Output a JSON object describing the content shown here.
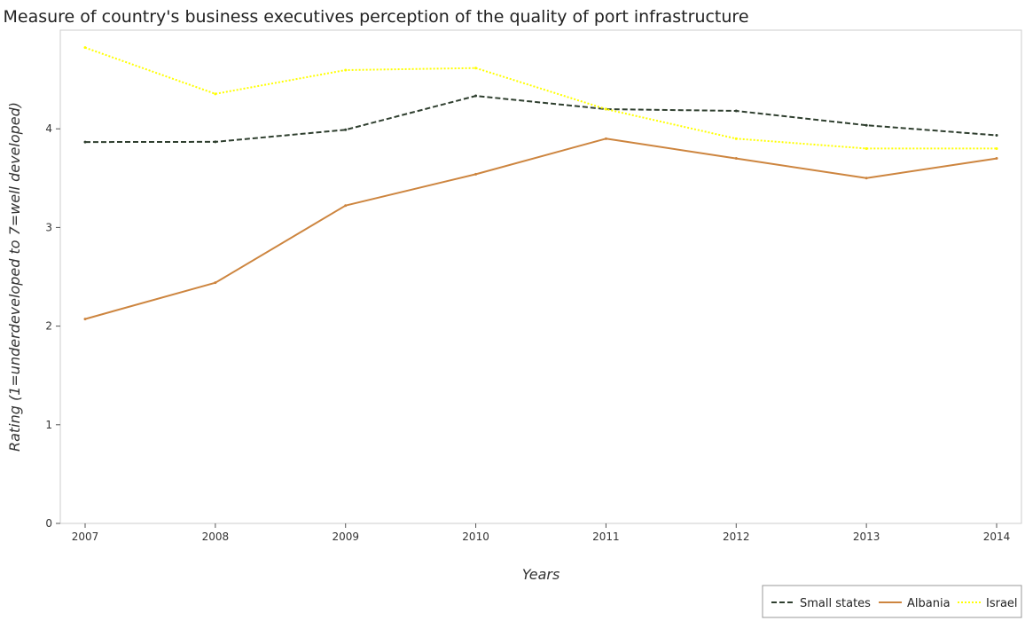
{
  "chart_data": {
    "type": "line",
    "title": "Measure of country's business executives perception of the quality of port infrastructure",
    "xlabel": "Years",
    "ylabel": "Rating (1=underdeveloped to 7=well developed)",
    "categories": [
      "2007",
      "2008",
      "2009",
      "2010",
      "2011",
      "2012",
      "2013",
      "2014"
    ],
    "ylim": [
      0,
      5
    ],
    "yticks": [
      "0",
      "1",
      "2",
      "3",
      "4"
    ],
    "grid": false,
    "legend_position": "bottom-right",
    "series": [
      {
        "name": "Small states",
        "color": "#2f3f2f",
        "dash": "dashed",
        "values": [
          3.866,
          3.868,
          3.99,
          4.334,
          4.2,
          4.182,
          4.036,
          3.934
        ]
      },
      {
        "name": "Albania",
        "color": "#cd853f",
        "dash": "solid",
        "values": [
          2.072,
          2.44,
          3.222,
          3.54,
          3.9,
          3.7,
          3.5,
          3.7
        ]
      },
      {
        "name": "Israel",
        "color": "#ffff00",
        "dash": "dotted",
        "values": [
          4.823,
          4.354,
          4.595,
          4.616,
          4.2,
          3.9,
          3.8,
          3.8
        ]
      }
    ]
  }
}
